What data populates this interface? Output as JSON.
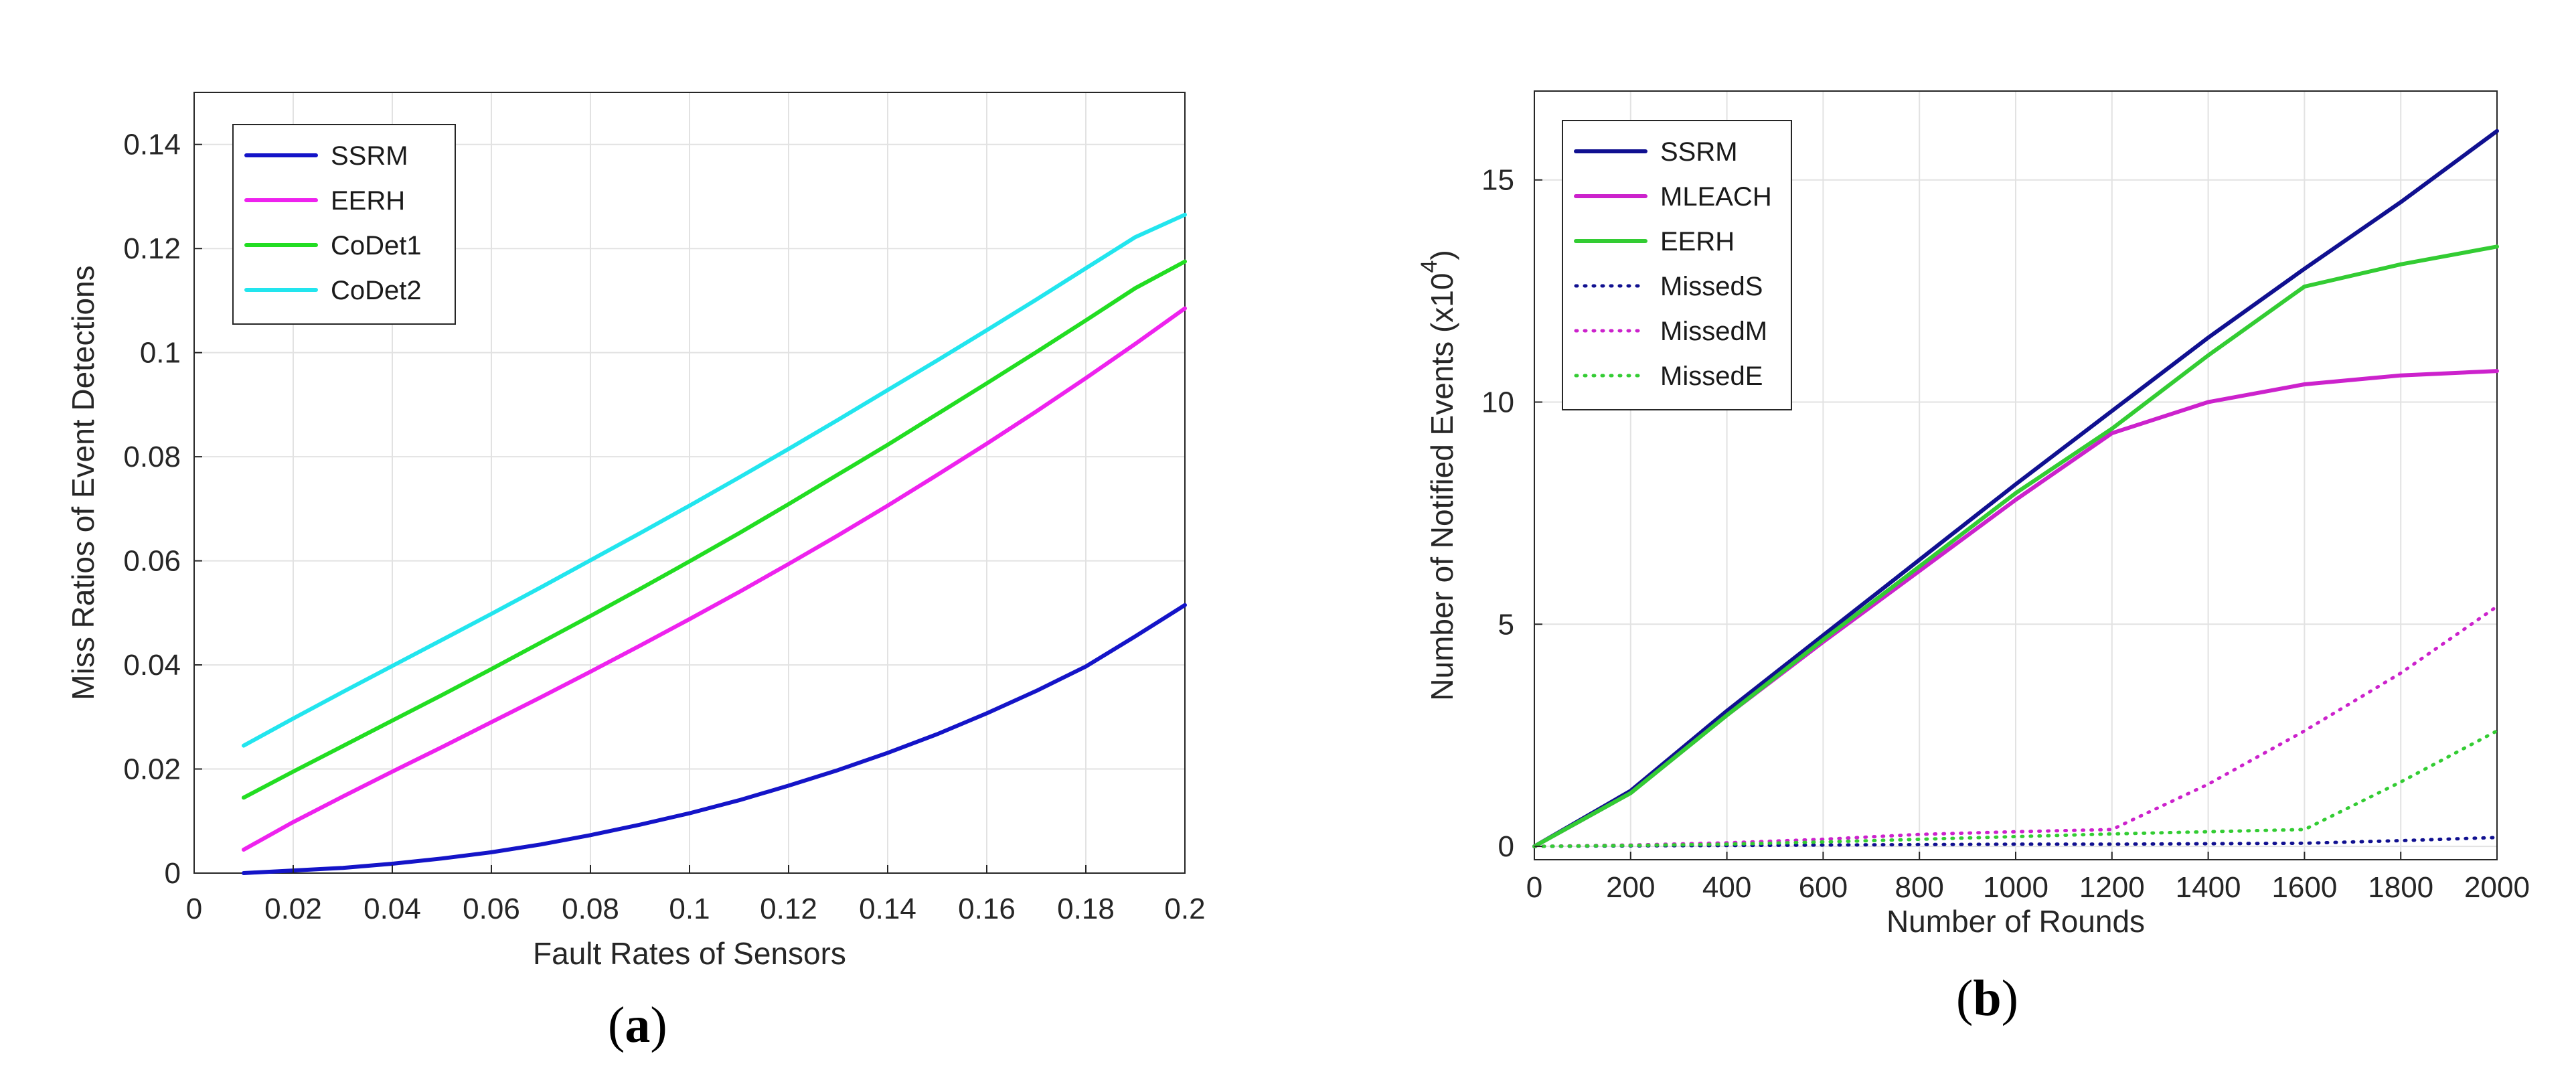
{
  "chart_data": [
    {
      "type": "line",
      "panel_label": "a",
      "xlabel": "Fault Rates of Sensors",
      "ylabel": "Miss Ratios of Event Detections",
      "xlim": [
        0,
        0.2
      ],
      "ylim": [
        0,
        0.15
      ],
      "xticks": [
        0,
        0.02,
        0.04,
        0.06,
        0.08,
        0.1,
        0.12,
        0.14,
        0.16,
        0.18,
        0.2
      ],
      "xtick_labels": [
        "0",
        "0.02",
        "0.04",
        "0.06",
        "0.08",
        "0.1",
        "0.12",
        "0.14",
        "0.16",
        "0.18",
        "0.2"
      ],
      "yticks": [
        0,
        0.02,
        0.04,
        0.06,
        0.08,
        0.1,
        0.12,
        0.14
      ],
      "ytick_labels": [
        "0",
        "0.02",
        "0.04",
        "0.06",
        "0.08",
        "0.1",
        "0.12",
        "0.14"
      ],
      "grid": true,
      "legend_position": "top-left",
      "x": [
        0.01,
        0.02,
        0.03,
        0.04,
        0.05,
        0.06,
        0.07,
        0.08,
        0.09,
        0.1,
        0.11,
        0.12,
        0.13,
        0.14,
        0.15,
        0.16,
        0.17,
        0.18,
        0.19,
        0.2
      ],
      "series": [
        {
          "name": "SSRM",
          "color": "#1414c8",
          "style": "solid",
          "values": [
            0.0,
            0.0005,
            0.001,
            0.0018,
            0.0028,
            0.004,
            0.0055,
            0.0073,
            0.0093,
            0.0115,
            0.014,
            0.0168,
            0.0198,
            0.0231,
            0.0267,
            0.0307,
            0.035,
            0.0397,
            0.0455,
            0.0515
          ]
        },
        {
          "name": "EERH",
          "color": "#ee22ee",
          "style": "solid",
          "values": [
            0.0045,
            0.0098,
            0.0147,
            0.0195,
            0.0242,
            0.029,
            0.0338,
            0.0387,
            0.0437,
            0.0488,
            0.054,
            0.0594,
            0.0649,
            0.0706,
            0.0765,
            0.0825,
            0.0887,
            0.0951,
            0.1017,
            0.1085
          ]
        },
        {
          "name": "CoDet1",
          "color": "#22dd22",
          "style": "solid",
          "values": [
            0.0145,
            0.0195,
            0.0244,
            0.0293,
            0.0342,
            0.0392,
            0.0443,
            0.0494,
            0.0546,
            0.0599,
            0.0653,
            0.0709,
            0.0766,
            0.0823,
            0.0882,
            0.0941,
            0.1001,
            0.1062,
            0.1124,
            0.1175
          ]
        },
        {
          "name": "CoDet2",
          "color": "#22e5ee",
          "style": "solid",
          "values": [
            0.0245,
            0.0297,
            0.0348,
            0.0398,
            0.0448,
            0.0498,
            0.0549,
            0.0601,
            0.0653,
            0.0706,
            0.076,
            0.0815,
            0.0871,
            0.0928,
            0.0985,
            0.1043,
            0.1102,
            0.1162,
            0.1222,
            0.1265
          ]
        }
      ]
    },
    {
      "type": "line",
      "panel_label": "b",
      "xlabel": "Number of Rounds",
      "ylabel": "Number of Notified Events (x10",
      "ylabel_exponent": "4",
      "ylabel_suffix": ")",
      "xlim": [
        0,
        2000
      ],
      "ylim": [
        -0.3,
        17
      ],
      "xticks": [
        0,
        200,
        400,
        600,
        800,
        1000,
        1200,
        1400,
        1600,
        1800,
        2000
      ],
      "xtick_labels": [
        "0",
        "200",
        "400",
        "600",
        "800",
        "1000",
        "1200",
        "1400",
        "1600",
        "1800",
        "2000"
      ],
      "yticks": [
        0,
        5,
        10,
        15
      ],
      "ytick_labels": [
        "0",
        "5",
        "10",
        "15"
      ],
      "grid": true,
      "legend_position": "top-left",
      "x": [
        0,
        200,
        400,
        600,
        800,
        1000,
        1200,
        1400,
        1600,
        1800,
        2000
      ],
      "series": [
        {
          "name": "SSRM",
          "color": "#101090",
          "style": "solid",
          "values": [
            0,
            1.25,
            3.05,
            4.75,
            6.45,
            8.15,
            9.8,
            11.45,
            13.0,
            14.5,
            16.1
          ]
        },
        {
          "name": "MLEACH",
          "color": "#cc22cc",
          "style": "solid",
          "values": [
            0,
            1.2,
            2.95,
            4.6,
            6.2,
            7.8,
            9.3,
            10.0,
            10.4,
            10.6,
            10.7
          ]
        },
        {
          "name": "EERH",
          "color": "#33cc33",
          "style": "solid",
          "values": [
            0,
            1.2,
            2.95,
            4.65,
            6.3,
            7.95,
            9.4,
            11.05,
            12.6,
            13.1,
            13.5
          ]
        },
        {
          "name": "MissedS",
          "color": "#101090",
          "style": "dotted",
          "values": [
            0,
            0.01,
            0.02,
            0.03,
            0.04,
            0.05,
            0.05,
            0.06,
            0.07,
            0.13,
            0.2
          ]
        },
        {
          "name": "MissedM",
          "color": "#cc22cc",
          "style": "dotted",
          "values": [
            0,
            0.03,
            0.08,
            0.16,
            0.27,
            0.33,
            0.38,
            1.4,
            2.6,
            3.9,
            5.4
          ]
        },
        {
          "name": "MissedE",
          "color": "#33cc33",
          "style": "dotted",
          "values": [
            0,
            0.02,
            0.05,
            0.1,
            0.16,
            0.22,
            0.28,
            0.33,
            0.38,
            1.45,
            2.6
          ]
        }
      ]
    }
  ]
}
